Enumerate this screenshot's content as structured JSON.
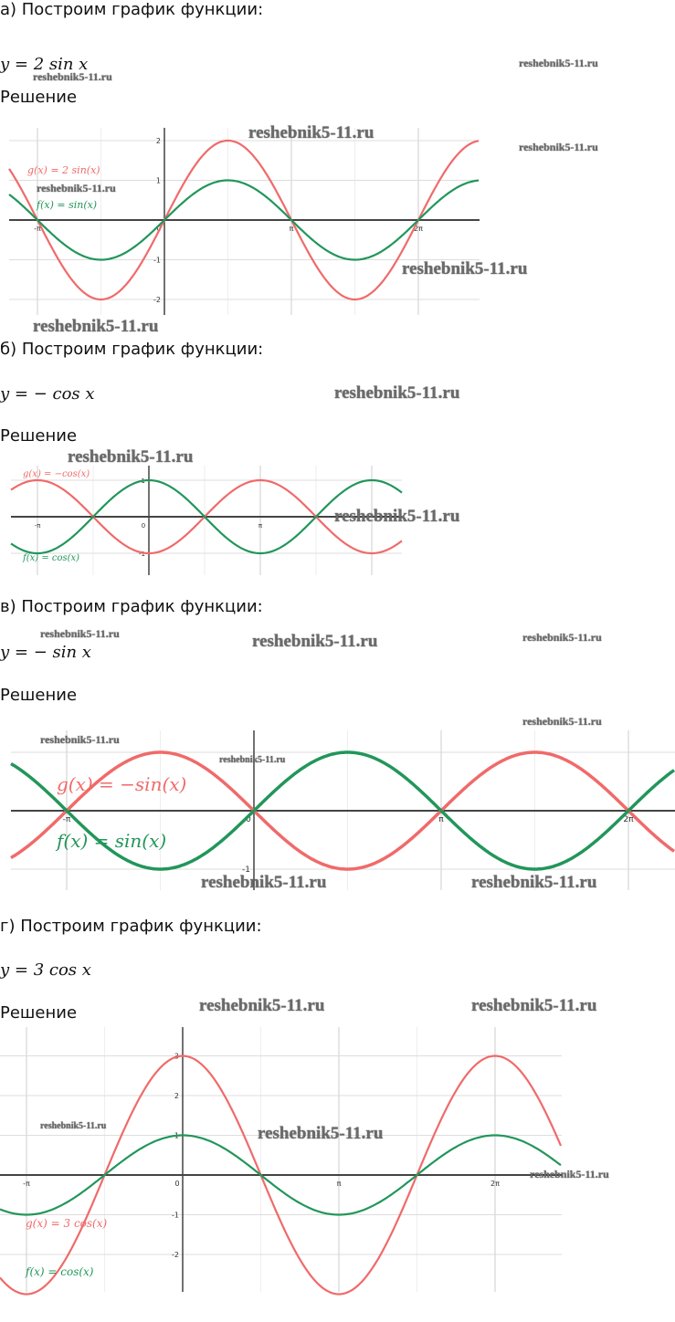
{
  "sections": [
    {
      "heading": "а) Построим график функции:",
      "formula": "y = 2 sin x",
      "solution": "Решение"
    },
    {
      "heading": "б) Построим график функции:",
      "formula": "y = − cos x",
      "solution": "Решение"
    },
    {
      "heading": "в) Построим график функции:",
      "formula": "y = − sin x",
      "solution": "Решение"
    },
    {
      "heading": "г) Построим график функции:",
      "formula": "y = 3 cos x",
      "solution": "Решение"
    }
  ],
  "watermark": "reshebnik5-11.ru",
  "colors": {
    "red": "#f06a6a",
    "green": "#22965a",
    "axis": "#444444",
    "grid": "#dddddd"
  },
  "chart_data": [
    {
      "type": "line",
      "x_ticks": [
        "-π",
        "0",
        "π",
        "2π"
      ],
      "y_ticks": [
        "2",
        "1",
        "-1",
        "-2"
      ],
      "series": [
        {
          "name": "g(x) = 2 sin(x)",
          "fn": "sin",
          "amplitude": 2,
          "color": "red"
        },
        {
          "name": "f(x) = sin(x)",
          "fn": "sin",
          "amplitude": 1,
          "color": "green"
        }
      ]
    },
    {
      "type": "line",
      "x_ticks": [
        "-π",
        "0",
        "π"
      ],
      "y_ticks": [
        "1",
        "-1"
      ],
      "series": [
        {
          "name": "g(x) = −cos(x)",
          "fn": "cos",
          "amplitude": -1,
          "color": "red"
        },
        {
          "name": "f(x) = cos(x)",
          "fn": "cos",
          "amplitude": 1,
          "color": "green"
        }
      ]
    },
    {
      "type": "line",
      "x_ticks": [
        "-π",
        "0",
        "π",
        "2π"
      ],
      "y_ticks": [
        "-1"
      ],
      "series": [
        {
          "name": "g(x) = −sin(x)",
          "fn": "sin",
          "amplitude": -1,
          "color": "red"
        },
        {
          "name": "f(x) = sin(x)",
          "fn": "sin",
          "amplitude": 1,
          "color": "green"
        }
      ]
    },
    {
      "type": "line",
      "x_ticks": [
        "-π",
        "0",
        "π",
        "2π"
      ],
      "y_ticks": [
        "3",
        "2",
        "1",
        "-1",
        "-2"
      ],
      "series": [
        {
          "name": "g(x) = 3 cos(x)",
          "fn": "cos",
          "amplitude": 3,
          "color": "red"
        },
        {
          "name": "f(x) = cos(x)",
          "fn": "cos",
          "amplitude": 1,
          "color": "green"
        }
      ]
    }
  ]
}
